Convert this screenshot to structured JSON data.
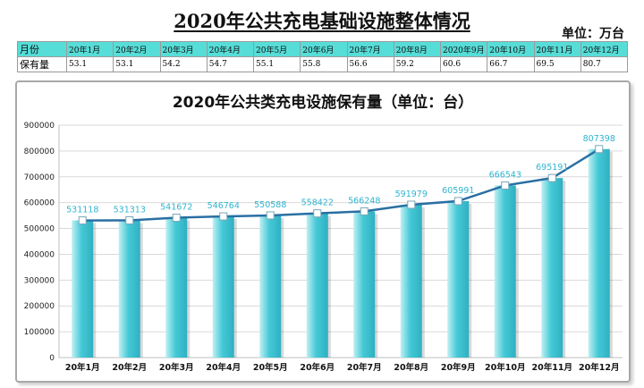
{
  "title": "2020年公共充电基础设施整体情况",
  "unit": "单位：万台",
  "table": {
    "headers": [
      "月份",
      "20年1月",
      "20年2月",
      "20年3月",
      "20年4月",
      "20年5月",
      "20年6月",
      "20年7月",
      "20年8月",
      "2020年9月",
      "20年10月",
      "20年11月",
      "20年12月"
    ],
    "row_label": "保有量",
    "values": [
      "53.1",
      "53.1",
      "54.2",
      "54.7",
      "55.1",
      "55.8",
      "56.6",
      "59.2",
      "60.6",
      "66.7",
      "69.5",
      "80.7"
    ]
  },
  "colors": {
    "bar": "#45c9d6",
    "line": "#2a6fa3",
    "label": "#2fb4cf",
    "header_bg": "#57ddd8"
  },
  "chart_data": {
    "type": "bar",
    "title": "2020年公共类充电设施保有量（单位：台）",
    "categories": [
      "20年1月",
      "20年2月",
      "20年3月",
      "20年4月",
      "20年5月",
      "20年6月",
      "20年7月",
      "20年8月",
      "20年9月",
      "20年10月",
      "20年11月",
      "20年12月"
    ],
    "series": [
      {
        "name": "保有量",
        "type": "bar",
        "values": [
          531118,
          531313,
          541672,
          546764,
          550588,
          558422,
          566248,
          591979,
          605991,
          666543,
          695191,
          807398
        ]
      },
      {
        "name": "保有量",
        "type": "line",
        "values": [
          531118,
          531313,
          541672,
          546764,
          550588,
          558422,
          566248,
          591979,
          605991,
          666543,
          695191,
          807398
        ]
      }
    ],
    "data_labels": [
      "531118",
      "531313",
      "541672",
      "546764",
      "550588",
      "558422",
      "566248",
      "591979",
      "605991",
      "666543",
      "695191",
      "807398"
    ],
    "ylim": [
      0,
      900000
    ],
    "yticks": [
      "0",
      "100000",
      "200000",
      "300000",
      "400000",
      "500000",
      "600000",
      "700000",
      "800000",
      "900000"
    ],
    "grid": true
  }
}
